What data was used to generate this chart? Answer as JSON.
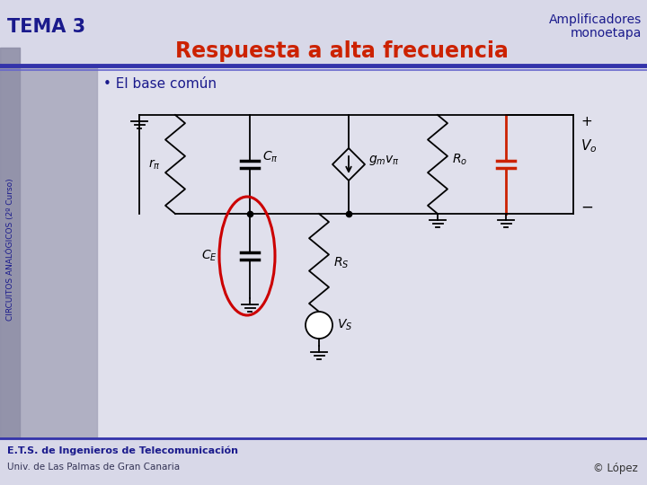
{
  "title_left": "TEMA 3",
  "title_right_line1": "Amplificadores",
  "title_right_line2": "monoetapa",
  "subtitle": "Respuesta a alta frecuencia",
  "bullet": "• El base común",
  "footer_line1": "E.T.S. de Ingenieros de Telecomunicación",
  "footer_line2": "Univ. de Las Palmas de Gran Canaria",
  "footer_right": "© López",
  "bg_color": "#e0e0ec",
  "sidebar_color": "#a8a8bc",
  "header_bg": "#d8d8e8",
  "title_color": "#1a1a8c",
  "subtitle_color": "#cc2200",
  "blue_line_color": "#3333aa",
  "circuit_color": "#000000",
  "red_circle_color": "#cc0000",
  "red_cap_color": "#cc2200",
  "footer_bg": "#d8d8e8"
}
